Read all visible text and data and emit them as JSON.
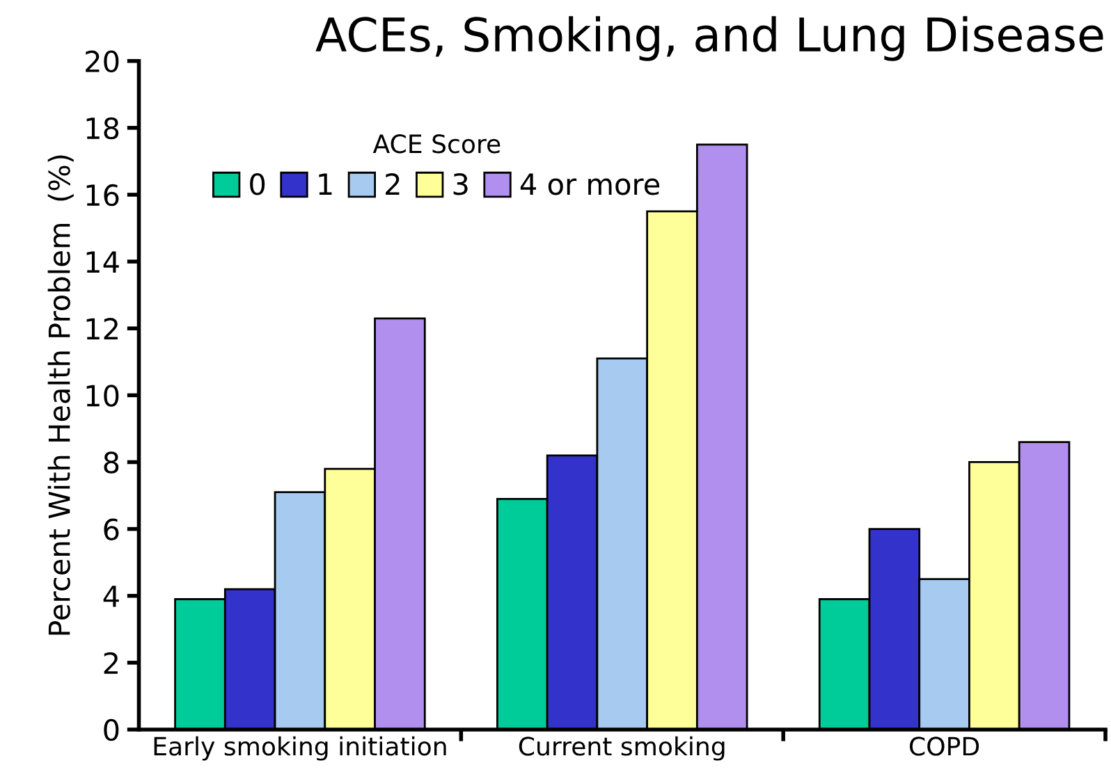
{
  "chart_data": {
    "type": "bar",
    "title": "ACEs, Smoking, and Lung Disease",
    "ylabel": "Percent With Health Problem  (%)",
    "legend_title": "ACE Score",
    "categories": [
      "Early smoking initiation",
      "Current smoking",
      "COPD"
    ],
    "series": [
      {
        "name": "0",
        "color": "#00cc99",
        "values": [
          3.9,
          6.9,
          3.9
        ]
      },
      {
        "name": "1",
        "color": "#3333cc",
        "values": [
          4.2,
          8.2,
          6.0
        ]
      },
      {
        "name": "2",
        "color": "#a6caf0",
        "values": [
          7.1,
          11.1,
          4.5
        ]
      },
      {
        "name": "3",
        "color": "#ffff99",
        "values": [
          7.8,
          15.5,
          8.0
        ]
      },
      {
        "name": "4 or more",
        "color": "#b08fef",
        "values": [
          12.3,
          17.5,
          8.6
        ]
      }
    ],
    "ylim": [
      0,
      20
    ],
    "yticks": [
      0,
      2,
      4,
      6,
      8,
      10,
      12,
      14,
      16,
      18,
      20
    ],
    "grid": false,
    "legend": "top left"
  }
}
